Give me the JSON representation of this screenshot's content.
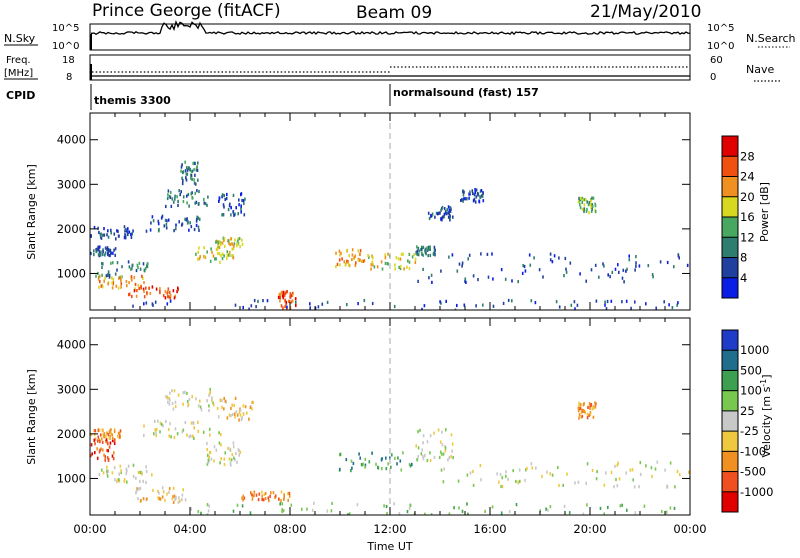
{
  "header": {
    "title": "Prince George (fitACF)",
    "beam": "Beam 09",
    "date": "21/May/2010"
  },
  "noise_panel": {
    "left_label": "N.Sky",
    "left_ticks": [
      "10^5",
      "10^0"
    ],
    "right_label": "N.Search",
    "right_ticks": [
      "10^5",
      "10^0"
    ]
  },
  "freq_panel": {
    "left_label_line1": "Freq.",
    "left_label_line2": "[MHz]",
    "left_ticks": [
      "18",
      "8"
    ],
    "right_label": "Nave",
    "right_ticks": [
      "60",
      "0"
    ]
  },
  "cpid": {
    "label": "CPID",
    "segments": [
      {
        "start_hour": 0,
        "text": "themis 3300"
      },
      {
        "start_hour": 12,
        "text": "normalsound (fast) 157"
      }
    ]
  },
  "chart_data": [
    {
      "type": "heatmap",
      "quantity": "Power",
      "ylabel": "Slant Range [km]",
      "xlabel": "",
      "ylim": [
        180,
        4600
      ],
      "yticks": [
        "1000",
        "2000",
        "3000",
        "4000"
      ],
      "xlim_hours": [
        0,
        24
      ],
      "colorbar": {
        "label": "Power [dB]",
        "ticks": [
          "4",
          "8",
          "12",
          "16",
          "20",
          "24",
          "28"
        ],
        "colors": [
          "#0a1ee6",
          "#2040a0",
          "#2f7d6e",
          "#48a860",
          "#d8d820",
          "#f09020",
          "#f05010",
          "#e00000"
        ]
      },
      "regions": [
        {
          "t": [
            0.0,
            1.7
          ],
          "r": [
            1750,
            2050
          ],
          "level": 1
        },
        {
          "t": [
            0.0,
            1.0
          ],
          "r": [
            1400,
            1600
          ],
          "level": 1
        },
        {
          "t": [
            0.2,
            2.3
          ],
          "r": [
            900,
            1300
          ],
          "level": 2
        },
        {
          "t": [
            0.3,
            2.2
          ],
          "r": [
            650,
            950
          ],
          "level": 5
        },
        {
          "t": [
            1.5,
            3.5
          ],
          "r": [
            450,
            700
          ],
          "level": 6
        },
        {
          "t": [
            2.2,
            4.5
          ],
          "r": [
            1950,
            2300
          ],
          "level": 1
        },
        {
          "t": [
            3.0,
            4.8
          ],
          "r": [
            2500,
            2900
          ],
          "level": 2
        },
        {
          "t": [
            3.6,
            4.3
          ],
          "r": [
            3000,
            3500
          ],
          "level": 2
        },
        {
          "t": [
            4.2,
            5.8
          ],
          "r": [
            1250,
            1600
          ],
          "level": 4
        },
        {
          "t": [
            5.0,
            6.1
          ],
          "r": [
            1600,
            1800
          ],
          "level": 4
        },
        {
          "t": [
            5.1,
            6.2
          ],
          "r": [
            2300,
            2800
          ],
          "level": 1
        },
        {
          "t": [
            7.5,
            8.2
          ],
          "r": [
            220,
            600
          ],
          "level": 6
        },
        {
          "t": [
            9.8,
            11.0
          ],
          "r": [
            1150,
            1550
          ],
          "level": 5
        },
        {
          "t": [
            11.0,
            13.0
          ],
          "r": [
            1100,
            1450
          ],
          "level": 4
        },
        {
          "t": [
            13.0,
            13.8
          ],
          "r": [
            1400,
            1600
          ],
          "level": 2
        },
        {
          "t": [
            13.5,
            14.5
          ],
          "r": [
            2200,
            2500
          ],
          "level": 1
        },
        {
          "t": [
            14.8,
            15.8
          ],
          "r": [
            2600,
            2900
          ],
          "level": 1
        },
        {
          "t": [
            13.0,
            24.0
          ],
          "r": [
            800,
            1100
          ],
          "level": 1
        },
        {
          "t": [
            14.0,
            24.0
          ],
          "r": [
            1150,
            1450
          ],
          "level": 1
        },
        {
          "t": [
            19.5,
            20.2
          ],
          "r": [
            2350,
            2700
          ],
          "level": 3
        },
        {
          "t": [
            0.0,
            24.0
          ],
          "r": [
            180,
            400
          ],
          "level": 1
        }
      ]
    },
    {
      "type": "heatmap",
      "quantity": "Velocity",
      "ylabel": "Slant Range [km]",
      "xlabel": "Time UT",
      "ylim": [
        180,
        4600
      ],
      "yticks": [
        "1000",
        "2000",
        "3000",
        "4000"
      ],
      "xticks": [
        "00:00",
        "04:00",
        "08:00",
        "12:00",
        "16:00",
        "20:00",
        "00:00"
      ],
      "colorbar": {
        "label": "Velocity [m s^-1]",
        "unit_base": "Velocity  [m s",
        "unit_exp": "-1",
        "unit_close": "]",
        "ticks": [
          "1000",
          "500",
          "100",
          "25",
          "-25",
          "-100",
          "-500",
          "-1000"
        ],
        "colors": [
          "#1e3cc8",
          "#1e6e8c",
          "#3ca050",
          "#78c850",
          "#c8c8c8",
          "#f0c840",
          "#f09020",
          "#f05020",
          "#e00000"
        ]
      },
      "regions": [
        {
          "t": [
            0.0,
            1.0
          ],
          "r": [
            1400,
            1900
          ],
          "level": 7
        },
        {
          "t": [
            0.0,
            1.2
          ],
          "r": [
            1900,
            2100
          ],
          "level": 6
        },
        {
          "t": [
            0.3,
            2.5
          ],
          "r": [
            900,
            1300
          ],
          "level": 4
        },
        {
          "t": [
            1.8,
            3.8
          ],
          "r": [
            450,
            800
          ],
          "level": 5
        },
        {
          "t": [
            2.0,
            5.5
          ],
          "r": [
            1900,
            2300
          ],
          "level": 4
        },
        {
          "t": [
            3.0,
            5.0
          ],
          "r": [
            2500,
            3000
          ],
          "level": 4
        },
        {
          "t": [
            4.5,
            6.0
          ],
          "r": [
            1300,
            1800
          ],
          "level": 4
        },
        {
          "t": [
            5.0,
            6.5
          ],
          "r": [
            2300,
            2800
          ],
          "level": 5
        },
        {
          "t": [
            6.0,
            8.0
          ],
          "r": [
            500,
            700
          ],
          "level": 6
        },
        {
          "t": [
            9.8,
            13.0
          ],
          "r": [
            1150,
            1600
          ],
          "level": 2
        },
        {
          "t": [
            13.0,
            14.5
          ],
          "r": [
            1400,
            2100
          ],
          "level": 4
        },
        {
          "t": [
            14.0,
            24.0
          ],
          "r": [
            800,
            1400
          ],
          "level": 4
        },
        {
          "t": [
            19.5,
            20.2
          ],
          "r": [
            2350,
            2700
          ],
          "level": 6
        },
        {
          "t": [
            4.0,
            24.0
          ],
          "r": [
            180,
            450
          ],
          "level": 3
        }
      ]
    }
  ]
}
